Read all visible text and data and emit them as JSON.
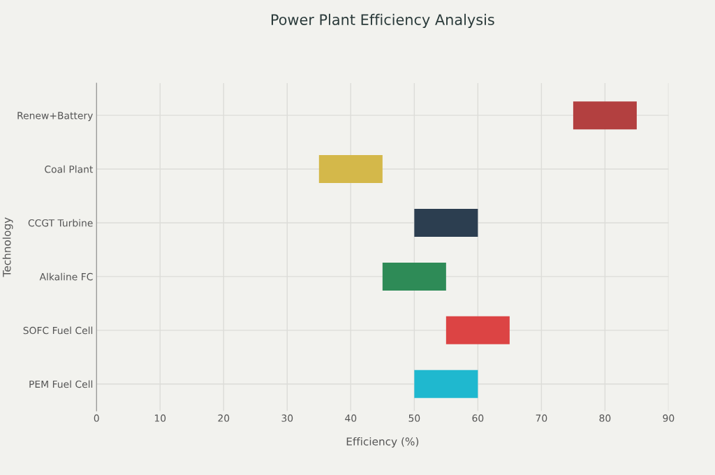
{
  "chart_data": {
    "type": "bar",
    "orientation": "horizontal",
    "title": "Power Plant Efficiency Analysis",
    "xlabel": "Efficiency (%)",
    "ylabel": "Technology",
    "categories": [
      "Renew+Battery",
      "Coal Plant",
      "CCGT Turbine",
      "Alkaline FC",
      "SOFC Fuel Cell",
      "PEM Fuel Cell"
    ],
    "base": [
      75,
      35,
      50,
      45,
      55,
      50
    ],
    "values": [
      10,
      10,
      10,
      10,
      10,
      10
    ],
    "colors": [
      "#b34040",
      "#d4b84a",
      "#2c3e50",
      "#2e8b57",
      "#dc4444",
      "#1fb8cf"
    ],
    "xlim": [
      0,
      90
    ],
    "xticks": [
      0,
      10,
      20,
      30,
      40,
      50,
      60,
      70,
      80,
      90
    ],
    "grid": true
  }
}
